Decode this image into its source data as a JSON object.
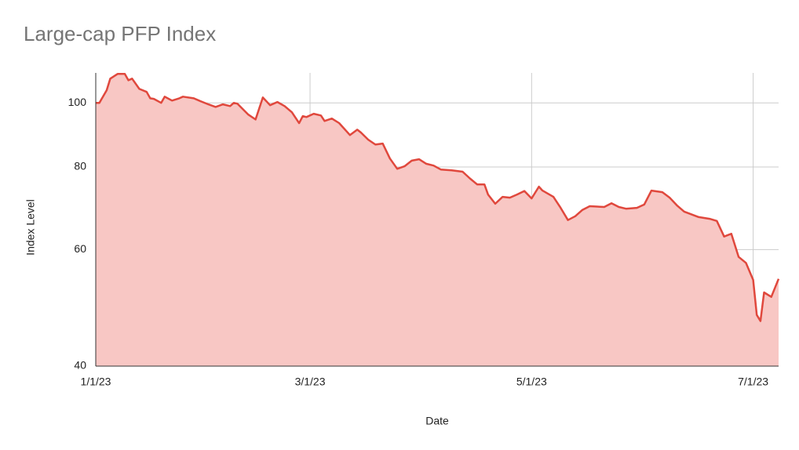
{
  "chart_data": {
    "type": "area",
    "title": "Large-cap PFP Index",
    "x_label": "Date",
    "y_label": "Index Level",
    "color": "#e0483d",
    "fill": "#f8c7c4",
    "log_y": true,
    "grid": true,
    "xlim": [
      "2023-01-01",
      "2023-07-08"
    ],
    "xticks": [
      {
        "value": "2023-01-01",
        "label": "1/1/23"
      },
      {
        "value": "2023-03-01",
        "label": "3/1/23"
      },
      {
        "value": "2023-05-01",
        "label": "5/1/23"
      },
      {
        "value": "2023-07-01",
        "label": "7/1/23"
      }
    ],
    "ylim": [
      40,
      111
    ],
    "yticks": [
      40,
      60,
      80,
      100
    ],
    "x": [
      "2023-01-01",
      "2023-01-02",
      "2023-01-04",
      "2023-01-05",
      "2023-01-07",
      "2023-01-09",
      "2023-01-10",
      "2023-01-11",
      "2023-01-13",
      "2023-01-15",
      "2023-01-16",
      "2023-01-17",
      "2023-01-19",
      "2023-01-20",
      "2023-01-22",
      "2023-01-24",
      "2023-01-25",
      "2023-01-28",
      "2023-01-30",
      "2023-02-01",
      "2023-02-03",
      "2023-02-05",
      "2023-02-07",
      "2023-02-08",
      "2023-02-09",
      "2023-02-12",
      "2023-02-14",
      "2023-02-16",
      "2023-02-18",
      "2023-02-20",
      "2023-02-22",
      "2023-02-24",
      "2023-02-26",
      "2023-02-27",
      "2023-02-28",
      "2023-03-02",
      "2023-03-04",
      "2023-03-05",
      "2023-03-07",
      "2023-03-09",
      "2023-03-12",
      "2023-03-14",
      "2023-03-15",
      "2023-03-17",
      "2023-03-19",
      "2023-03-21",
      "2023-03-23",
      "2023-03-25",
      "2023-03-27",
      "2023-03-29",
      "2023-03-31",
      "2023-04-02",
      "2023-04-04",
      "2023-04-06",
      "2023-04-09",
      "2023-04-12",
      "2023-04-14",
      "2023-04-16",
      "2023-04-18",
      "2023-04-19",
      "2023-04-21",
      "2023-04-23",
      "2023-04-25",
      "2023-04-27",
      "2023-04-29",
      "2023-05-01",
      "2023-05-03",
      "2023-05-04",
      "2023-05-07",
      "2023-05-09",
      "2023-05-11",
      "2023-05-13",
      "2023-05-15",
      "2023-05-17",
      "2023-05-21",
      "2023-05-23",
      "2023-05-25",
      "2023-05-27",
      "2023-05-30",
      "2023-06-01",
      "2023-06-03",
      "2023-06-06",
      "2023-06-08",
      "2023-06-10",
      "2023-06-12",
      "2023-06-16",
      "2023-06-19",
      "2023-06-21",
      "2023-06-23",
      "2023-06-25",
      "2023-06-27",
      "2023-06-29",
      "2023-07-01",
      "2023-07-02",
      "2023-07-03",
      "2023-07-04",
      "2023-07-06",
      "2023-07-08"
    ],
    "values": [
      100,
      100,
      104.5,
      108.8,
      110.6,
      110.6,
      108.2,
      108.8,
      105,
      103.9,
      101.6,
      101.4,
      100,
      102.2,
      100.8,
      101.6,
      102.2,
      101.6,
      100.5,
      99.5,
      98.6,
      99.5,
      98.9,
      100,
      99.7,
      96,
      94.4,
      101.9,
      99.2,
      100.3,
      98.9,
      96.8,
      93.2,
      95.5,
      95.2,
      96.3,
      95.7,
      93.9,
      94.7,
      93.2,
      89.4,
      91.1,
      90.2,
      88,
      86.5,
      86.8,
      82.4,
      79.5,
      80.2,
      81.8,
      82.2,
      80.9,
      80.4,
      79.3,
      79.1,
      78.7,
      76.9,
      75.3,
      75.3,
      72.7,
      70.4,
      72.1,
      71.9,
      72.7,
      73.6,
      71.7,
      74.7,
      73.7,
      72.1,
      69.4,
      66.5,
      67.4,
      68.9,
      69.8,
      69.6,
      70.5,
      69.6,
      69.2,
      69.4,
      70.2,
      73.7,
      73.3,
      71.9,
      70,
      68.5,
      67.2,
      66.8,
      66.3,
      62.8,
      63.4,
      58.5,
      57.3,
      54,
      47.8,
      46.8,
      51.7,
      50.9,
      54.2
    ]
  }
}
